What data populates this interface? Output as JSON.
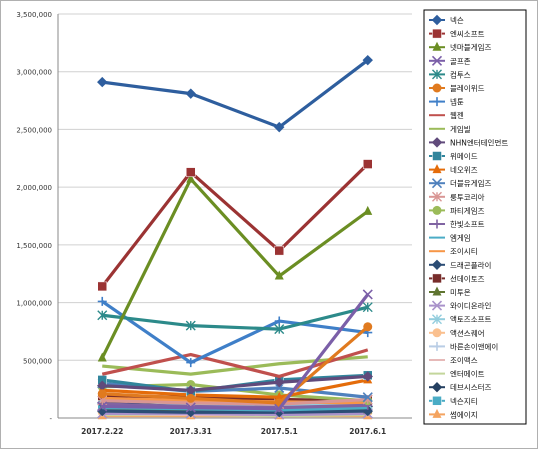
{
  "chart_data": {
    "type": "line",
    "title": "",
    "xlabel": "",
    "ylabel": "",
    "categories": [
      "2017.2.22",
      "2017.3.31",
      "2017.5.1",
      "2017.6.1"
    ],
    "ylim": [
      0,
      3500000
    ],
    "yticks": [
      0,
      500000,
      1000000,
      1500000,
      2000000,
      2500000,
      3000000,
      3500000
    ],
    "ytick_labels": [
      "-",
      "500,000",
      "1,000,000",
      "1,500,000",
      "2,000,000",
      "2,500,000",
      "3,000,000",
      "3,500,000"
    ],
    "grid": true,
    "legend_position": "right",
    "series": [
      {
        "name": "넥슨",
        "color": "#2e5e9e",
        "marker": "diamond",
        "values": [
          2910000,
          2810000,
          2520000,
          3100000
        ]
      },
      {
        "name": "엔씨소프트",
        "color": "#9b3333",
        "marker": "square",
        "values": [
          1140000,
          2130000,
          1450000,
          2200000
        ]
      },
      {
        "name": "넷마블게임즈",
        "color": "#6b8e23",
        "marker": "triangle",
        "values": [
          520000,
          2070000,
          1230000,
          1790000
        ]
      },
      {
        "name": "골프존",
        "color": "#7b5fa8",
        "marker": "x",
        "values": [
          100000,
          90000,
          80000,
          1070000
        ]
      },
      {
        "name": "컴투스",
        "color": "#2c8a8a",
        "marker": "star",
        "values": [
          890000,
          800000,
          770000,
          960000
        ]
      },
      {
        "name": "블레이위드",
        "color": "#e07a1f",
        "marker": "circle",
        "values": [
          210000,
          170000,
          130000,
          790000
        ]
      },
      {
        "name": "넵툰",
        "color": "#3f7fc8",
        "marker": "plus",
        "values": [
          1010000,
          480000,
          840000,
          740000
        ]
      },
      {
        "name": "웹젠",
        "color": "#c0504d",
        "marker": "line",
        "values": [
          380000,
          550000,
          360000,
          590000
        ]
      },
      {
        "name": "게임빌",
        "color": "#9bbb59",
        "marker": "line",
        "values": [
          450000,
          380000,
          470000,
          530000
        ]
      },
      {
        "name": "NHN엔터테인먼트",
        "color": "#604a7b",
        "marker": "diamond",
        "values": [
          280000,
          240000,
          310000,
          360000
        ]
      },
      {
        "name": "위메이드",
        "color": "#31859c",
        "marker": "square",
        "values": [
          330000,
          230000,
          330000,
          370000
        ]
      },
      {
        "name": "네오위즈",
        "color": "#e46c0a",
        "marker": "triangle",
        "values": [
          240000,
          200000,
          180000,
          330000
        ]
      },
      {
        "name": "더블유게임즈",
        "color": "#4f81bd",
        "marker": "x",
        "values": [
          300000,
          230000,
          260000,
          180000
        ]
      },
      {
        "name": "룽투코리아",
        "color": "#d99694",
        "marker": "star",
        "values": [
          150000,
          130000,
          120000,
          160000
        ]
      },
      {
        "name": "파티게임즈",
        "color": "#9bbb59",
        "marker": "circle",
        "values": [
          270000,
          290000,
          200000,
          150000
        ]
      },
      {
        "name": "한빛소프트",
        "color": "#8064a2",
        "marker": "plus",
        "values": [
          120000,
          100000,
          90000,
          110000
        ]
      },
      {
        "name": "엠게임",
        "color": "#4bacc6",
        "marker": "line",
        "values": [
          90000,
          80000,
          70000,
          90000
        ]
      },
      {
        "name": "조이시티",
        "color": "#f79646",
        "marker": "line",
        "values": [
          170000,
          150000,
          140000,
          130000
        ]
      },
      {
        "name": "드래곤플라이",
        "color": "#2c4d75",
        "marker": "diamond",
        "values": [
          60000,
          50000,
          50000,
          60000
        ]
      },
      {
        "name": "선데이토즈",
        "color": "#772c2a",
        "marker": "square",
        "values": [
          190000,
          180000,
          160000,
          150000
        ]
      },
      {
        "name": "미투온",
        "color": "#5f7530",
        "marker": "triangle",
        "values": [
          80000,
          70000,
          80000,
          70000
        ]
      },
      {
        "name": "와이디온라인",
        "color": "#a992ca",
        "marker": "x",
        "values": [
          40000,
          40000,
          30000,
          40000
        ]
      },
      {
        "name": "액토즈소프트",
        "color": "#93cddd",
        "marker": "star",
        "values": [
          160000,
          120000,
          110000,
          120000
        ]
      },
      {
        "name": "액션스퀘어",
        "color": "#fac08f",
        "marker": "circle",
        "values": [
          50000,
          40000,
          40000,
          50000
        ]
      },
      {
        "name": "바른손이앤에이",
        "color": "#b9cde5",
        "marker": "plus",
        "values": [
          70000,
          60000,
          50000,
          60000
        ]
      },
      {
        "name": "조이맥스",
        "color": "#e6b9b8",
        "marker": "line",
        "values": [
          40000,
          30000,
          30000,
          40000
        ]
      },
      {
        "name": "엔터메이트",
        "color": "#c3d69b",
        "marker": "line",
        "values": [
          30000,
          30000,
          20000,
          30000
        ]
      },
      {
        "name": "데브시스터즈",
        "color": "#254061",
        "marker": "diamond",
        "values": [
          130000,
          110000,
          100000,
          100000
        ]
      },
      {
        "name": "넥슨지티",
        "color": "#4aacc5",
        "marker": "square",
        "values": [
          100000,
          80000,
          70000,
          80000
        ]
      },
      {
        "name": "썸에이지",
        "color": "#f4a460",
        "marker": "triangle",
        "values": [
          20000,
          20000,
          20000,
          20000
        ]
      }
    ]
  }
}
